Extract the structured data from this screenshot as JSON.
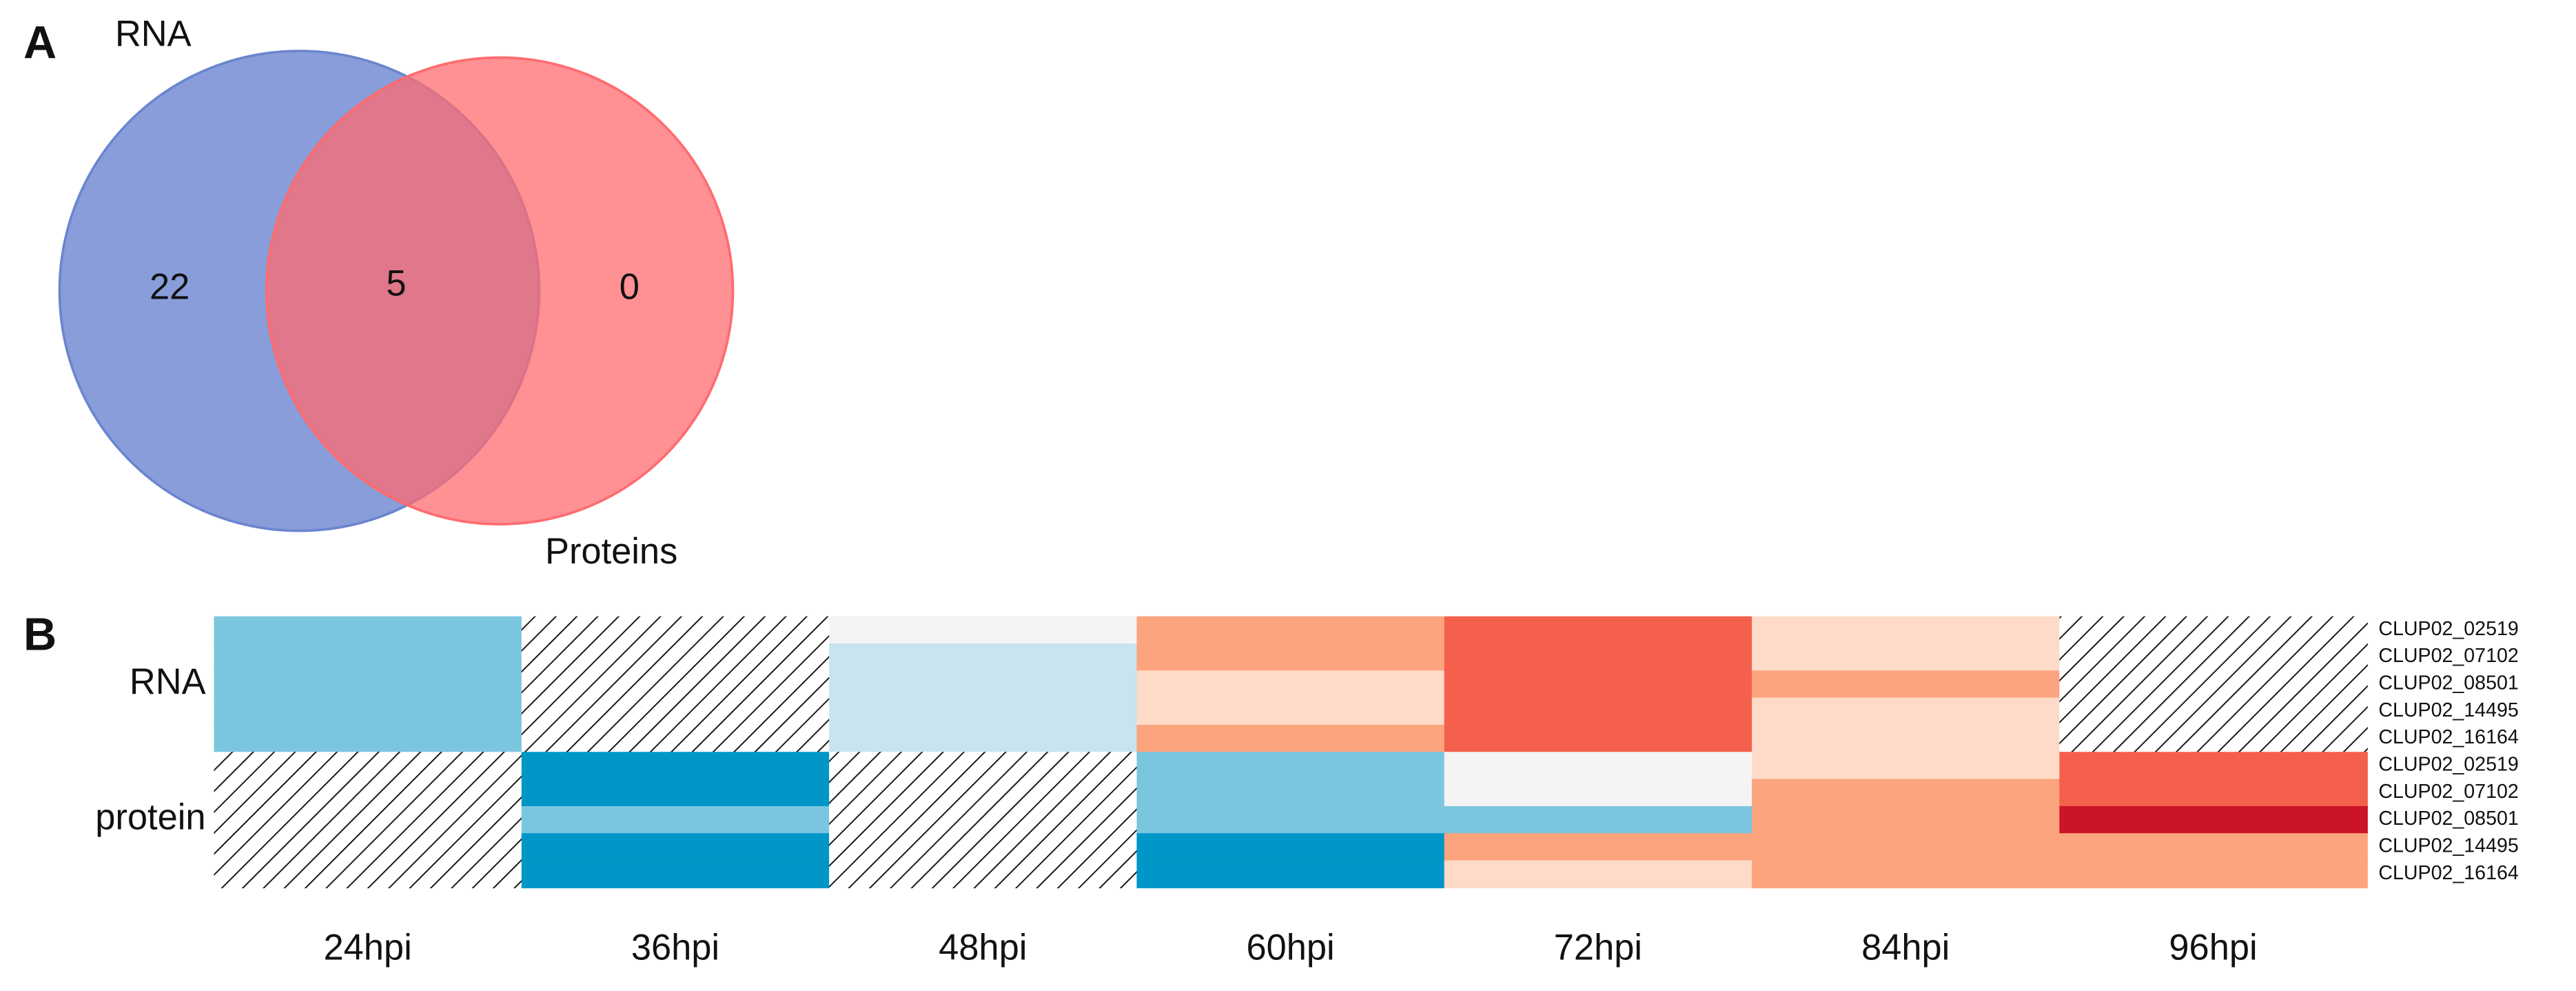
{
  "chart_data": [
    {
      "type": "venn",
      "panel": "A",
      "sets": [
        {
          "name": "RNA",
          "color": "#6a85cf"
        },
        {
          "name": "Proteins",
          "color": "#ff6b6f"
        }
      ],
      "counts": {
        "only_0": 22,
        "both": 5,
        "only_1": 0
      }
    },
    {
      "type": "heatmap",
      "panel": "B",
      "columns": [
        "24hpi",
        "36hpi",
        "48hpi",
        "60hpi",
        "72hpi",
        "84hpi",
        "96hpi"
      ],
      "rows": [
        "CLUP02_02519",
        "CLUP02_07102",
        "CLUP02_08501",
        "CLUP02_14495",
        "CLUP02_16164",
        "CLUP02_02519",
        "CLUP02_07102",
        "CLUP02_08501",
        "CLUP02_14495",
        "CLUP02_16164"
      ],
      "row_groups": [
        "RNA",
        "protein"
      ],
      "colors": [
        [
          "#7ac6de",
          "#7ac6de",
          "#7ac6de",
          "#7ac6de",
          "#7ac6de",
          null,
          null,
          null,
          null,
          null
        ],
        [
          null,
          null,
          null,
          null,
          null,
          "#0096c7",
          "#0096c7",
          "#7ac6de",
          "#0096c7",
          "#0096c7"
        ],
        [
          "#f4f4f4",
          "#c8e4ef",
          "#c8e4ef",
          "#c8e4ef",
          "#c8e4ef",
          null,
          null,
          null,
          null,
          null
        ],
        [
          "#fca47e",
          "#fca47e",
          "#fddbc8",
          "#fddbc8",
          "#fca47e",
          "#7ac6de",
          "#7ac6de",
          "#7ac6de",
          "#0096c7",
          "#0096c7"
        ],
        [
          "#f4604c",
          "#f4604c",
          "#f4604c",
          "#f4604c",
          "#f4604c",
          "#f4f4f4",
          "#f4f4f4",
          "#7ac6de",
          "#fca47e",
          "#fddbc8"
        ],
        [
          "#fddbc8",
          "#fddbc8",
          "#fca47e",
          "#fddbc8",
          "#fddbc8",
          "#fddbc8",
          "#fca47e",
          "#fca47e",
          "#fca47e",
          "#fca47e"
        ],
        [
          null,
          null,
          null,
          null,
          null,
          "#f4604c",
          "#f4604c",
          "#cb1426",
          "#fca47e",
          "#fca47e"
        ]
      ]
    }
  ]
}
